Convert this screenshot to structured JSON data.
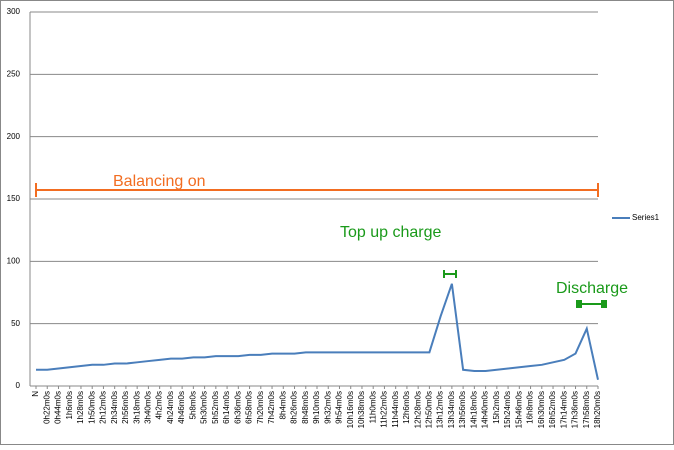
{
  "chart_data": {
    "type": "line",
    "categories": [
      "N",
      "0h22m0s",
      "0h44m0s",
      "1h6m0s",
      "1h28m0s",
      "1h50m0s",
      "2h12m0s",
      "2h34m0s",
      "2h56m0s",
      "3h18m0s",
      "3h40m0s",
      "4h2m0s",
      "4h24m0s",
      "4h46m0s",
      "5h8m0s",
      "5h30m0s",
      "5h52m0s",
      "6h14m0s",
      "6h36m0s",
      "6h58m0s",
      "7h20m0s",
      "7h42m0s",
      "8h4m0s",
      "8h26m0s",
      "8h48m0s",
      "9h10m0s",
      "9h32m0s",
      "9h54m0s",
      "10h16m0s",
      "10h38m0s",
      "11h0m0s",
      "11h22m0s",
      "11h44m0s",
      "12h6m0s",
      "12h28m0s",
      "12h50m0s",
      "13h12m0s",
      "13h34m0s",
      "13h56m0s",
      "14h18m0s",
      "14h40m0s",
      "15h2m0s",
      "15h24m0s",
      "15h46m0s",
      "16h8m0s",
      "16h30m0s",
      "16h52m0s",
      "17h14m0s",
      "17h36m0s",
      "17h58m0s",
      "18h20m0s"
    ],
    "series": [
      {
        "name": "Series1",
        "color": "#4a7ebb",
        "values": [
          13,
          13,
          14,
          15,
          16,
          17,
          17,
          18,
          18,
          19,
          20,
          21,
          22,
          22,
          23,
          23,
          24,
          24,
          24,
          25,
          25,
          26,
          26,
          26,
          27,
          27,
          27,
          27,
          27,
          27,
          27,
          27,
          27,
          27,
          27,
          27,
          56,
          82,
          13,
          12,
          12,
          13,
          14,
          15,
          16,
          17,
          19,
          21,
          26,
          46,
          5
        ]
      }
    ],
    "ylim": [
      0,
      300
    ],
    "yticks": [
      0,
      50,
      100,
      150,
      200,
      250,
      300
    ],
    "grid": true,
    "legend": "right",
    "annotations": [
      "Balancing on",
      "Top up charge",
      "Discharge"
    ]
  }
}
